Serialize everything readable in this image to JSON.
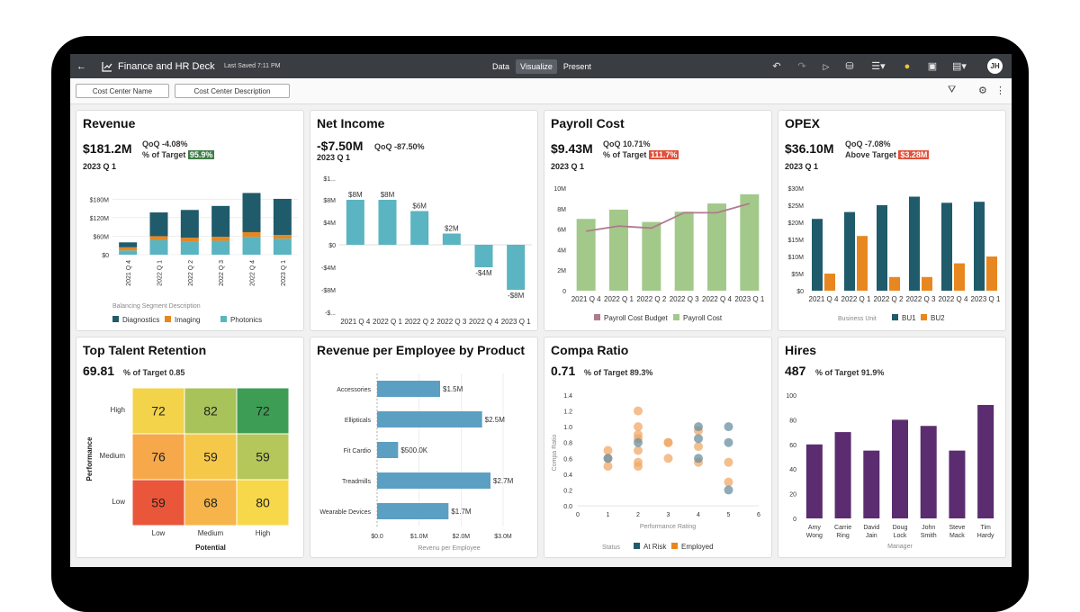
{
  "app": {
    "title": "Finance and HR Deck",
    "last_saved": "Last Saved 7:11 PM",
    "modes": [
      "Data",
      "Visualize",
      "Present"
    ],
    "active_mode": "Visualize",
    "user_initials": "JH"
  },
  "filters": [
    "Cost Center Name",
    "Cost Center Description"
  ],
  "colors": {
    "topbar": "#3a3d42",
    "teal_dark": "#1f5b6b",
    "orange": "#e8871f",
    "teal_light": "#5ab4c2",
    "green": "#a3c98a",
    "mauve": "#b07a8f",
    "purple": "#5b2c6f",
    "scatter_blue": "#6b8fa0",
    "scatter_orange": "#f0a868",
    "hbar": "#5b9fc2"
  },
  "cards": {
    "revenue": {
      "title": "Revenue",
      "kpi": "$181.2M",
      "qoq": "QoQ -4.08%",
      "target_label": "% of Target",
      "target_value": "95.9%",
      "period": "2023 Q 1",
      "x_title": "Balancing Segment Description"
    },
    "net_income": {
      "title": "Net Income",
      "kpi": "-$7.50M",
      "qoq": "QoQ -87.50%",
      "period": "2023 Q 1"
    },
    "payroll": {
      "title": "Payroll Cost",
      "kpi": "$9.43M",
      "qoq": "QoQ 10.71%",
      "target_label": "% of Target",
      "target_value": "111.7%",
      "period": "2023 Q 1"
    },
    "opex": {
      "title": "OPEX",
      "kpi": "$36.10M",
      "qoq": "QoQ -7.08%",
      "target_label": "Above Target",
      "target_value": "$3.28M",
      "period": "2023 Q 1",
      "legend_title": "Business Unit"
    },
    "talent": {
      "title": "Top Talent Retention",
      "kpi": "69.81",
      "target_label": "% of Target",
      "target_value": "0.85"
    },
    "rpe": {
      "title": "Revenue per Employee by Product"
    },
    "compa": {
      "title": "Compa Ratio",
      "kpi": "0.71",
      "target_label": "% of Target",
      "target_value": "89.3%",
      "legend_title": "Status"
    },
    "hires": {
      "title": "Hires",
      "kpi": "487",
      "target_label": "% of Target",
      "target_value": "91.9%"
    }
  },
  "chart_data": [
    {
      "id": "revenue",
      "type": "bar",
      "stacked": true,
      "categories": [
        "2021 Q 4",
        "2022 Q 1",
        "2022 Q 2",
        "2022 Q 3",
        "2022 Q 4",
        "2023 Q 1"
      ],
      "series": [
        {
          "name": "Photonics",
          "values": [
            14,
            48,
            42,
            45,
            58,
            52
          ]
        },
        {
          "name": "Imaging",
          "values": [
            10,
            12,
            13,
            13,
            15,
            12
          ]
        },
        {
          "name": "Diagnostics",
          "values": [
            16,
            77,
            90,
            100,
            127,
            117
          ]
        }
      ],
      "legend_order": [
        "Diagnostics",
        "Imaging",
        "Photonics"
      ],
      "xlabel": "Balancing Segment Description",
      "yticks": [
        "$0",
        "$60M",
        "$120M",
        "$180M"
      ],
      "ylim": [
        0,
        210
      ]
    },
    {
      "id": "net_income",
      "type": "bar",
      "categories": [
        "2021 Q 4",
        "2022 Q 1",
        "2022 Q 2",
        "2022 Q 3",
        "2022 Q 4",
        "2023 Q 1"
      ],
      "values": [
        8,
        8,
        6,
        2,
        -4,
        -8
      ],
      "data_labels": [
        "$8M",
        "$8M",
        "$6M",
        "$2M",
        "-$4M",
        "-$8M"
      ],
      "yticks": [
        "$1...",
        "$8M",
        "$4M",
        "$0",
        "-$4M",
        "-$8M",
        "-$..."
      ],
      "ylim": [
        -11,
        12
      ]
    },
    {
      "id": "payroll",
      "type": "bar",
      "categories": [
        "2021 Q 4",
        "2022 Q 1",
        "2022 Q 2",
        "2022 Q 3",
        "2022 Q 4",
        "2023 Q 1"
      ],
      "series": [
        {
          "name": "Payroll Cost",
          "values": [
            7.0,
            7.9,
            6.7,
            7.7,
            8.5,
            9.4
          ]
        },
        {
          "name": "Payroll Cost Budget",
          "values": [
            5.8,
            6.3,
            6.1,
            7.6,
            7.6,
            8.5
          ]
        }
      ],
      "legend_order": [
        "Payroll Cost Budget",
        "Payroll Cost"
      ],
      "yticks": [
        "0",
        "2M",
        "4M",
        "6M",
        "8M",
        "10M"
      ],
      "ylim": [
        0,
        10
      ]
    },
    {
      "id": "opex",
      "type": "bar",
      "categories": [
        "2021 Q 4",
        "2022 Q 1",
        "2022 Q 2",
        "2022 Q 3",
        "2022 Q 4",
        "2023 Q 1"
      ],
      "series": [
        {
          "name": "BU1",
          "values": [
            21,
            23,
            25,
            27.5,
            25.7,
            26
          ]
        },
        {
          "name": "BU2",
          "values": [
            5,
            16,
            4,
            4,
            8,
            10
          ]
        }
      ],
      "legend_title": "Business Unit",
      "yticks": [
        "$0",
        "$5M",
        "$10M",
        "$15M",
        "$20M",
        "$25M",
        "$30M"
      ],
      "ylim": [
        0,
        30
      ]
    },
    {
      "id": "talent",
      "type": "heatmap",
      "rows": [
        "High",
        "Medium",
        "Low"
      ],
      "cols": [
        "Low",
        "Medium",
        "High"
      ],
      "values": [
        [
          72,
          82,
          72
        ],
        [
          76,
          59,
          59
        ],
        [
          59,
          68,
          80
        ]
      ],
      "colors": [
        [
          "#f3d34a",
          "#a8c35a",
          "#3e9d55"
        ],
        [
          "#f6a84a",
          "#f6c84a",
          "#b5c75a"
        ],
        [
          "#e9563a",
          "#f6b44a",
          "#f6d84a"
        ]
      ],
      "xlabel": "Potential",
      "ylabel": "Performance"
    },
    {
      "id": "rpe",
      "type": "bar",
      "orientation": "horizontal",
      "categories": [
        "Accessories",
        "Ellipticals",
        "Fit Cardio",
        "Treadmills",
        "Wearable Devices"
      ],
      "values": [
        1.5,
        2.5,
        0.5,
        2.7,
        1.7
      ],
      "data_labels": [
        "$1.5M",
        "$2.5M",
        "$500.0K",
        "$2.7M",
        "$1.7M"
      ],
      "xticks": [
        "$0.0",
        "$1.0M",
        "$2.0M",
        "$3.0M"
      ],
      "xlim": [
        0,
        3.0
      ],
      "xlabel": "Revenu per Employee"
    },
    {
      "id": "compa",
      "type": "scatter",
      "xlim": [
        0,
        6
      ],
      "ylim": [
        0,
        1.4
      ],
      "xticks": [
        "0",
        "1",
        "2",
        "3",
        "4",
        "5",
        "6"
      ],
      "yticks": [
        "0.0",
        "0.2",
        "0.4",
        "0.6",
        "0.8",
        "1.0",
        "1.2",
        "1.4"
      ],
      "xlabel": "Performance Rating",
      "ylabel": "Compa Ratio",
      "legend_title": "Status",
      "series": [
        {
          "name": "At Risk",
          "points": [
            [
              1,
              0.6
            ],
            [
              2,
              0.8
            ],
            [
              4,
              1.0
            ],
            [
              4,
              0.85
            ],
            [
              4,
              0.6
            ],
            [
              5,
              1.0
            ],
            [
              5,
              0.8
            ],
            [
              5,
              0.2
            ]
          ]
        },
        {
          "name": "Employed",
          "points": [
            [
              1,
              0.7
            ],
            [
              1,
              0.6
            ],
            [
              1,
              0.5
            ],
            [
              2,
              1.2
            ],
            [
              2,
              1.0
            ],
            [
              2,
              0.9
            ],
            [
              2,
              0.85
            ],
            [
              2,
              0.7
            ],
            [
              2,
              0.55
            ],
            [
              2,
              0.5
            ],
            [
              3,
              0.8
            ],
            [
              3,
              0.8
            ],
            [
              3,
              0.6
            ],
            [
              4,
              0.95
            ],
            [
              4,
              0.75
            ],
            [
              4,
              0.55
            ],
            [
              5,
              0.55
            ],
            [
              5,
              0.3
            ]
          ]
        }
      ]
    },
    {
      "id": "hires",
      "type": "bar",
      "categories": [
        "Amy Wong",
        "Carrie Ring",
        "David Jain",
        "Doug Lock",
        "John Smith",
        "Steve Mack",
        "Tim Hardy"
      ],
      "values": [
        60,
        70,
        55,
        80,
        75,
        55,
        92
      ],
      "xlabel": "Manager",
      "yticks": [
        "0",
        "20",
        "40",
        "60",
        "80",
        "100"
      ],
      "ylim": [
        0,
        100
      ]
    }
  ]
}
